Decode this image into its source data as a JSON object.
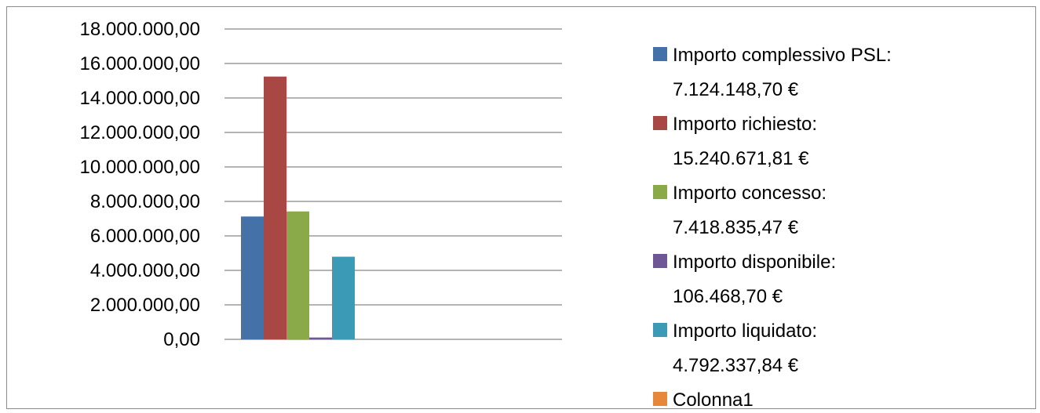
{
  "chart_data": {
    "type": "bar",
    "categories": [
      ""
    ],
    "ylim": [
      0,
      18000000
    ],
    "y_ticks": [
      "0,00",
      "2.000.000,00",
      "4.000.000,00",
      "6.000.000,00",
      "8.000.000,00",
      "10.000.000,00",
      "12.000.000,00",
      "14.000.000,00",
      "16.000.000,00",
      "18.000.000,00"
    ],
    "y_tick_values": [
      0,
      2000000,
      4000000,
      6000000,
      8000000,
      10000000,
      12000000,
      14000000,
      16000000,
      18000000
    ],
    "grid": true,
    "legend_placement": "right",
    "series": [
      {
        "name": "Importo complessivo PSL:",
        "value_label": "7.124.148,70 €",
        "values": [
          7124148.7
        ],
        "color": "#4472a8"
      },
      {
        "name": "Importo richiesto:",
        "value_label": "15.240.671,81 €",
        "values": [
          15240671.81
        ],
        "color": "#a84744"
      },
      {
        "name": "Importo concesso:",
        "value_label": "7.418.835,47 €",
        "values": [
          7418835.47
        ],
        "color": "#8aaa4a"
      },
      {
        "name": "Importo disponibile:",
        "value_label": "106.468,70 €",
        "values": [
          106468.7
        ],
        "color": "#6f5696"
      },
      {
        "name": "Importo liquidato:",
        "value_label": "4.792.337,84 €",
        "values": [
          4792337.84
        ],
        "color": "#3b9ab5"
      },
      {
        "name": "Colonna1",
        "value_label": "",
        "values": [
          0
        ],
        "color": "#e6873a"
      }
    ]
  }
}
